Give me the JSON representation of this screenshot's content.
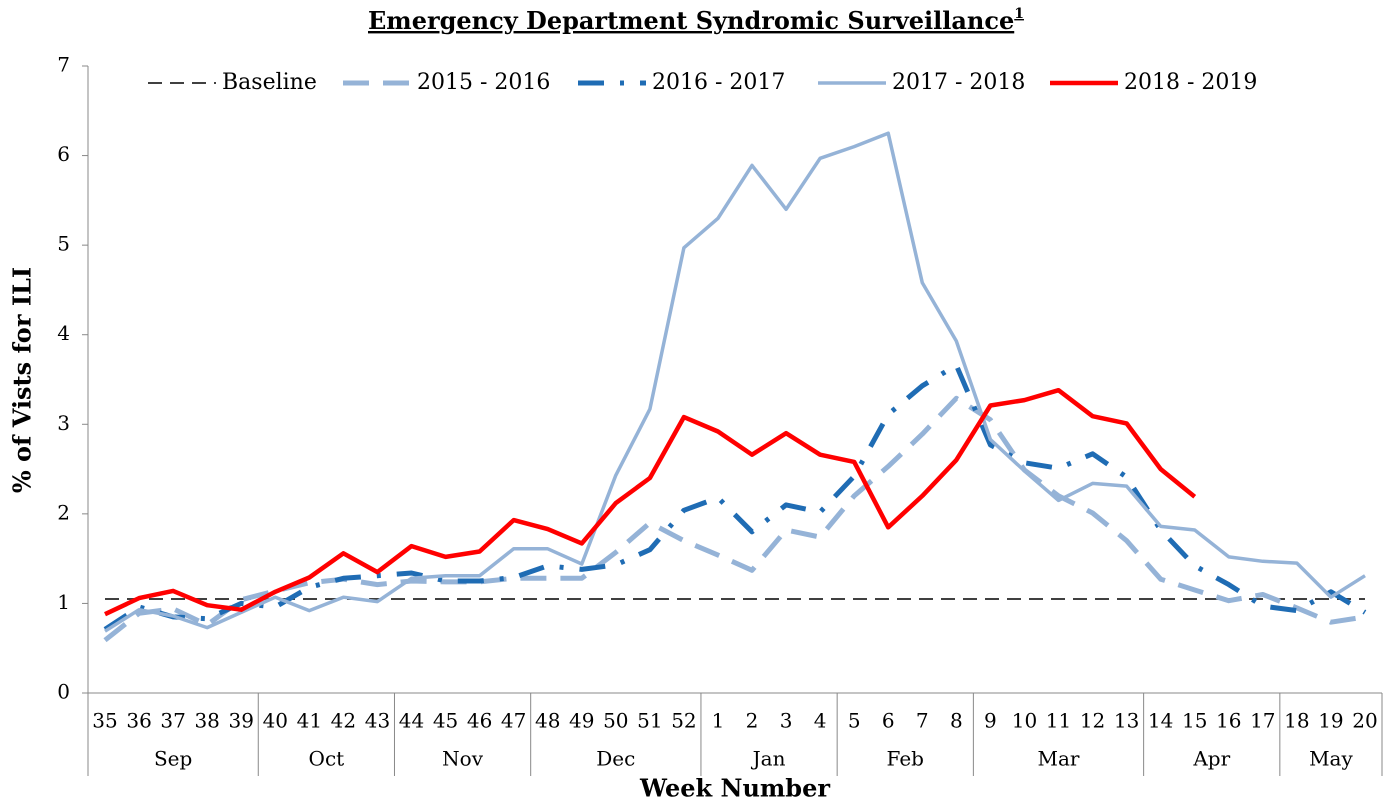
{
  "chart_data": {
    "type": "line",
    "title": "Emergency Department Syndromic Surveillance",
    "title_superscript": "1",
    "x_label": "Week Number",
    "y_label": "% of Vists for ILI",
    "categories": [
      "35",
      "36",
      "37",
      "38",
      "39",
      "40",
      "41",
      "42",
      "43",
      "44",
      "45",
      "46",
      "47",
      "48",
      "49",
      "50",
      "51",
      "52",
      "1",
      "2",
      "3",
      "4",
      "5",
      "6",
      "7",
      "8",
      "9",
      "10",
      "11",
      "12",
      "13",
      "14",
      "15",
      "16",
      "17",
      "18",
      "19",
      "20"
    ],
    "category_groups": [
      {
        "label": "Sep",
        "size": 5
      },
      {
        "label": "Oct",
        "size": 4
      },
      {
        "label": "Nov",
        "size": 4
      },
      {
        "label": "Dec",
        "size": 5
      },
      {
        "label": "Jan",
        "size": 4
      },
      {
        "label": "Feb",
        "size": 4
      },
      {
        "label": "Mar",
        "size": 5
      },
      {
        "label": "Apr",
        "size": 4
      },
      {
        "label": "May",
        "size": 3
      }
    ],
    "ylim": [
      0,
      7
    ],
    "yticks": [
      0,
      1,
      2,
      3,
      4,
      5,
      6,
      7
    ],
    "grid": false,
    "legend": "top",
    "series": [
      {
        "name": "Baseline",
        "color": "#404040",
        "line_style": "dashed",
        "width": 2,
        "values": [
          1.05,
          1.05,
          1.05,
          1.05,
          1.05,
          1.05,
          1.05,
          1.05,
          1.05,
          1.05,
          1.05,
          1.05,
          1.05,
          1.05,
          1.05,
          1.05,
          1.05,
          1.05,
          1.05,
          1.05,
          1.05,
          1.05,
          1.05,
          1.05,
          1.05,
          1.05,
          1.05,
          1.05,
          1.05,
          1.05,
          1.05,
          1.05,
          1.05,
          1.05,
          1.05,
          1.05,
          1.05,
          1.05
        ]
      },
      {
        "name": "2015 - 2016",
        "color": "#95b3d7",
        "line_style": "dashed-wide",
        "width": 5,
        "values": [
          0.59,
          0.89,
          0.94,
          0.76,
          1.04,
          1.14,
          1.23,
          1.27,
          1.21,
          1.25,
          1.24,
          1.24,
          1.28,
          1.28,
          1.28,
          1.57,
          1.9,
          1.7,
          1.54,
          1.37,
          1.82,
          1.74,
          2.2,
          2.53,
          2.89,
          3.29,
          3.05,
          2.49,
          2.2,
          2.01,
          1.7,
          1.27,
          1.15,
          1.03,
          1.1,
          0.95,
          0.79,
          0.85
        ]
      },
      {
        "name": "2016 - 2017",
        "color": "#1f6cb4",
        "line_style": "dash-dot",
        "width": 5,
        "values": [
          0.71,
          0.96,
          0.85,
          0.83,
          1.0,
          0.96,
          1.18,
          1.28,
          1.31,
          1.34,
          1.25,
          1.25,
          1.29,
          1.42,
          1.38,
          1.43,
          1.6,
          2.04,
          2.18,
          1.8,
          2.1,
          2.02,
          2.42,
          3.11,
          3.43,
          3.66,
          2.77,
          2.57,
          2.51,
          2.67,
          2.41,
          1.82,
          1.42,
          1.21,
          0.97,
          0.92,
          1.13,
          0.9
        ]
      },
      {
        "name": "2017 - 2018",
        "color": "#95b3d7",
        "line_style": "solid",
        "width": 3.5,
        "values": [
          0.69,
          0.93,
          0.86,
          0.73,
          0.9,
          1.07,
          0.92,
          1.07,
          1.02,
          1.28,
          1.31,
          1.31,
          1.61,
          1.61,
          1.44,
          2.43,
          3.17,
          4.97,
          5.3,
          5.89,
          5.4,
          5.97,
          6.1,
          6.25,
          4.58,
          3.93,
          2.83,
          2.48,
          2.15,
          2.34,
          2.31,
          1.86,
          1.82,
          1.52,
          1.47,
          1.45,
          1.07,
          1.31
        ]
      },
      {
        "name": "2018 - 2019",
        "color": "#ff0000",
        "line_style": "solid",
        "width": 4.5,
        "values": [
          0.88,
          1.06,
          1.14,
          0.98,
          0.93,
          1.13,
          1.29,
          1.56,
          1.35,
          1.64,
          1.52,
          1.58,
          1.93,
          1.83,
          1.67,
          2.12,
          2.4,
          3.08,
          2.92,
          2.66,
          2.9,
          2.66,
          2.58,
          1.85,
          2.2,
          2.6,
          3.21,
          3.27,
          3.38,
          3.09,
          3.01,
          2.5,
          2.19,
          null,
          null,
          null,
          null,
          null
        ]
      }
    ]
  }
}
